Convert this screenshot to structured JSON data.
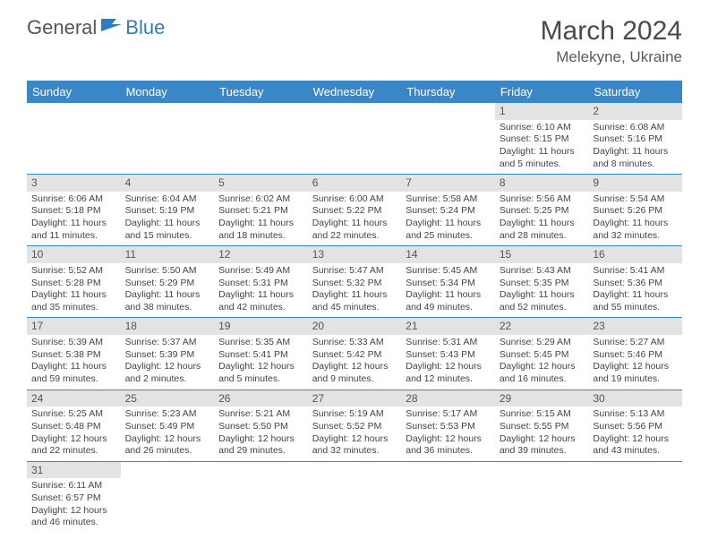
{
  "logo": {
    "general": "General",
    "blue": "Blue"
  },
  "title": "March 2024",
  "location": "Melekyne, Ukraine",
  "colors": {
    "header_bg": "#3a87c8",
    "header_text": "#ffffff",
    "daynum_bg": "#e3e3e3",
    "row_divider": "#3a87c8",
    "body_text": "#444444",
    "title_text": "#4a4a4a",
    "logo_general": "#555555",
    "logo_blue": "#2d7dc3"
  },
  "weekdays": [
    "Sunday",
    "Monday",
    "Tuesday",
    "Wednesday",
    "Thursday",
    "Friday",
    "Saturday"
  ],
  "weeks": [
    [
      {
        "n": "",
        "lines": []
      },
      {
        "n": "",
        "lines": []
      },
      {
        "n": "",
        "lines": []
      },
      {
        "n": "",
        "lines": []
      },
      {
        "n": "",
        "lines": []
      },
      {
        "n": "1",
        "lines": [
          "Sunrise: 6:10 AM",
          "Sunset: 5:15 PM",
          "Daylight: 11 hours",
          "and 5 minutes."
        ]
      },
      {
        "n": "2",
        "lines": [
          "Sunrise: 6:08 AM",
          "Sunset: 5:16 PM",
          "Daylight: 11 hours",
          "and 8 minutes."
        ]
      }
    ],
    [
      {
        "n": "3",
        "lines": [
          "Sunrise: 6:06 AM",
          "Sunset: 5:18 PM",
          "Daylight: 11 hours",
          "and 11 minutes."
        ]
      },
      {
        "n": "4",
        "lines": [
          "Sunrise: 6:04 AM",
          "Sunset: 5:19 PM",
          "Daylight: 11 hours",
          "and 15 minutes."
        ]
      },
      {
        "n": "5",
        "lines": [
          "Sunrise: 6:02 AM",
          "Sunset: 5:21 PM",
          "Daylight: 11 hours",
          "and 18 minutes."
        ]
      },
      {
        "n": "6",
        "lines": [
          "Sunrise: 6:00 AM",
          "Sunset: 5:22 PM",
          "Daylight: 11 hours",
          "and 22 minutes."
        ]
      },
      {
        "n": "7",
        "lines": [
          "Sunrise: 5:58 AM",
          "Sunset: 5:24 PM",
          "Daylight: 11 hours",
          "and 25 minutes."
        ]
      },
      {
        "n": "8",
        "lines": [
          "Sunrise: 5:56 AM",
          "Sunset: 5:25 PM",
          "Daylight: 11 hours",
          "and 28 minutes."
        ]
      },
      {
        "n": "9",
        "lines": [
          "Sunrise: 5:54 AM",
          "Sunset: 5:26 PM",
          "Daylight: 11 hours",
          "and 32 minutes."
        ]
      }
    ],
    [
      {
        "n": "10",
        "lines": [
          "Sunrise: 5:52 AM",
          "Sunset: 5:28 PM",
          "Daylight: 11 hours",
          "and 35 minutes."
        ]
      },
      {
        "n": "11",
        "lines": [
          "Sunrise: 5:50 AM",
          "Sunset: 5:29 PM",
          "Daylight: 11 hours",
          "and 38 minutes."
        ]
      },
      {
        "n": "12",
        "lines": [
          "Sunrise: 5:49 AM",
          "Sunset: 5:31 PM",
          "Daylight: 11 hours",
          "and 42 minutes."
        ]
      },
      {
        "n": "13",
        "lines": [
          "Sunrise: 5:47 AM",
          "Sunset: 5:32 PM",
          "Daylight: 11 hours",
          "and 45 minutes."
        ]
      },
      {
        "n": "14",
        "lines": [
          "Sunrise: 5:45 AM",
          "Sunset: 5:34 PM",
          "Daylight: 11 hours",
          "and 49 minutes."
        ]
      },
      {
        "n": "15",
        "lines": [
          "Sunrise: 5:43 AM",
          "Sunset: 5:35 PM",
          "Daylight: 11 hours",
          "and 52 minutes."
        ]
      },
      {
        "n": "16",
        "lines": [
          "Sunrise: 5:41 AM",
          "Sunset: 5:36 PM",
          "Daylight: 11 hours",
          "and 55 minutes."
        ]
      }
    ],
    [
      {
        "n": "17",
        "lines": [
          "Sunrise: 5:39 AM",
          "Sunset: 5:38 PM",
          "Daylight: 11 hours",
          "and 59 minutes."
        ]
      },
      {
        "n": "18",
        "lines": [
          "Sunrise: 5:37 AM",
          "Sunset: 5:39 PM",
          "Daylight: 12 hours",
          "and 2 minutes."
        ]
      },
      {
        "n": "19",
        "lines": [
          "Sunrise: 5:35 AM",
          "Sunset: 5:41 PM",
          "Daylight: 12 hours",
          "and 5 minutes."
        ]
      },
      {
        "n": "20",
        "lines": [
          "Sunrise: 5:33 AM",
          "Sunset: 5:42 PM",
          "Daylight: 12 hours",
          "and 9 minutes."
        ]
      },
      {
        "n": "21",
        "lines": [
          "Sunrise: 5:31 AM",
          "Sunset: 5:43 PM",
          "Daylight: 12 hours",
          "and 12 minutes."
        ]
      },
      {
        "n": "22",
        "lines": [
          "Sunrise: 5:29 AM",
          "Sunset: 5:45 PM",
          "Daylight: 12 hours",
          "and 16 minutes."
        ]
      },
      {
        "n": "23",
        "lines": [
          "Sunrise: 5:27 AM",
          "Sunset: 5:46 PM",
          "Daylight: 12 hours",
          "and 19 minutes."
        ]
      }
    ],
    [
      {
        "n": "24",
        "lines": [
          "Sunrise: 5:25 AM",
          "Sunset: 5:48 PM",
          "Daylight: 12 hours",
          "and 22 minutes."
        ]
      },
      {
        "n": "25",
        "lines": [
          "Sunrise: 5:23 AM",
          "Sunset: 5:49 PM",
          "Daylight: 12 hours",
          "and 26 minutes."
        ]
      },
      {
        "n": "26",
        "lines": [
          "Sunrise: 5:21 AM",
          "Sunset: 5:50 PM",
          "Daylight: 12 hours",
          "and 29 minutes."
        ]
      },
      {
        "n": "27",
        "lines": [
          "Sunrise: 5:19 AM",
          "Sunset: 5:52 PM",
          "Daylight: 12 hours",
          "and 32 minutes."
        ]
      },
      {
        "n": "28",
        "lines": [
          "Sunrise: 5:17 AM",
          "Sunset: 5:53 PM",
          "Daylight: 12 hours",
          "and 36 minutes."
        ]
      },
      {
        "n": "29",
        "lines": [
          "Sunrise: 5:15 AM",
          "Sunset: 5:55 PM",
          "Daylight: 12 hours",
          "and 39 minutes."
        ]
      },
      {
        "n": "30",
        "lines": [
          "Sunrise: 5:13 AM",
          "Sunset: 5:56 PM",
          "Daylight: 12 hours",
          "and 43 minutes."
        ]
      }
    ],
    [
      {
        "n": "31",
        "lines": [
          "Sunrise: 6:11 AM",
          "Sunset: 6:57 PM",
          "Daylight: 12 hours",
          "and 46 minutes."
        ]
      },
      {
        "n": "",
        "lines": []
      },
      {
        "n": "",
        "lines": []
      },
      {
        "n": "",
        "lines": []
      },
      {
        "n": "",
        "lines": []
      },
      {
        "n": "",
        "lines": []
      },
      {
        "n": "",
        "lines": []
      }
    ]
  ]
}
